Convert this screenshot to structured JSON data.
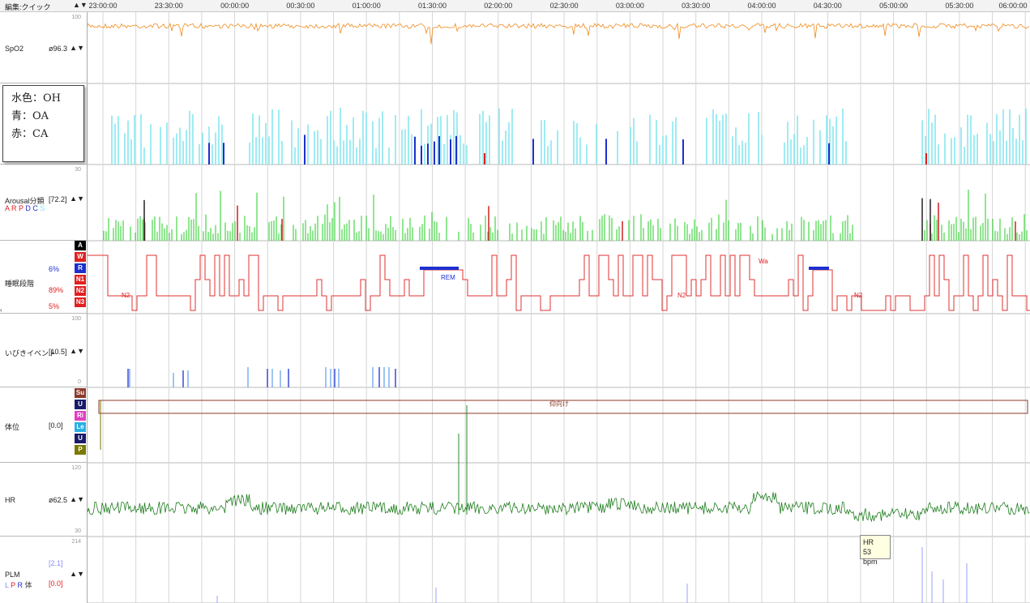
{
  "toolbar": {
    "title": "編集:クイック",
    "nav_arrows": "▲▼"
  },
  "time_ticks": [
    "23:00:00",
    "23:30:00",
    "00:00:00",
    "00:30:00",
    "01:00:00",
    "01:30:00",
    "02:00:00",
    "02:30:00",
    "03:00:00",
    "03:30:00",
    "04:00:00",
    "04:30:00",
    "05:00:00",
    "05:30:00",
    "06:00:00"
  ],
  "channels": {
    "spo2": {
      "name": "SpO2",
      "value": "ø96.3",
      "scale_max": "100",
      "color": "#f08a1c"
    },
    "apnea": {
      "scale_min": "0",
      "colors": {
        "oh": "#7fe6ef",
        "oa": "#1d2fd0",
        "ca": "#e02020"
      }
    },
    "arousal": {
      "name": "Arousal分類",
      "value": "[72.2]",
      "scale_max": "30",
      "legend": [
        "A",
        "R",
        "P",
        "D",
        "C",
        "S"
      ],
      "legend_colors": [
        "#e02020",
        "#e02020",
        "#e02020",
        "#1d2fd0",
        "#1d2fd0",
        "#7fe6ef"
      ]
    },
    "stages": {
      "name": "睡眠段階",
      "pct_r": "6%",
      "pct_n2": "89%",
      "pct_n3": "5%",
      "labels": [
        "A",
        "W",
        "R",
        "N1",
        "N2",
        "N3"
      ],
      "label_colors": [
        "#000000",
        "#e02020",
        "#1d2fd0",
        "#e02020",
        "#e02020",
        "#e02020"
      ],
      "annotations": [
        "N2",
        "REM",
        "N2",
        "Wa",
        "N2"
      ]
    },
    "snore": {
      "name": "いびきイベント",
      "value": "[10.5]",
      "scale_max": "100",
      "scale_min": "0"
    },
    "position": {
      "name": "体位",
      "value": "[0.0]",
      "labels": [
        "Su",
        "U",
        "Ri",
        "Le",
        "U",
        "P"
      ],
      "label_colors": [
        "#8b3a2a",
        "#1a1a6a",
        "#e040c0",
        "#27b0e6",
        "#1a1a6a",
        "#7a7a00"
      ],
      "annotation": "仰向け"
    },
    "hr": {
      "name": "HR",
      "value": "ø62.5",
      "scale_max": "120",
      "scale_min": "30",
      "color": "#1e7d1e"
    },
    "plm": {
      "name": "PLM",
      "value1": "[2.1]",
      "value2": "[0.0]",
      "legend": [
        "L",
        "P",
        "R",
        "体"
      ],
      "scale_max": "214"
    }
  },
  "legend_box": {
    "line1": "水色：OH",
    "line2": "青：OA",
    "line3": "赤：CA"
  },
  "tooltip": {
    "line1": "HR",
    "line2": "53 bpm"
  },
  "arrows": "▲▼"
}
